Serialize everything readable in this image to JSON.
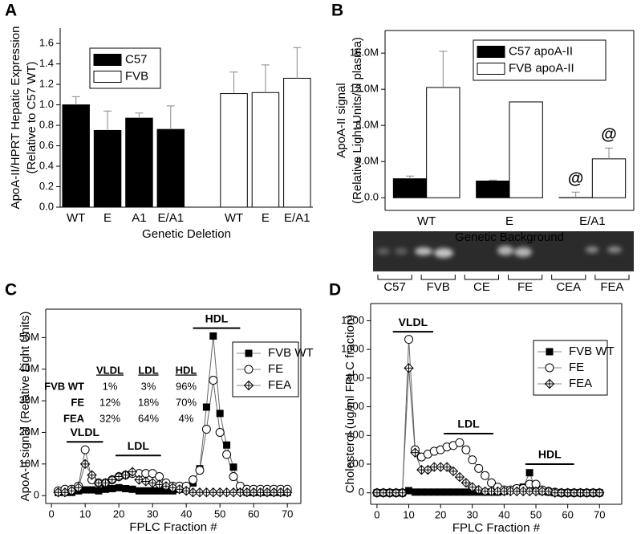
{
  "chart_data": [
    {
      "type": "bar",
      "panel": "A",
      "categories": [
        "WT",
        "E",
        "A1",
        "E/A1",
        null,
        "WT",
        "E",
        "E/A1"
      ],
      "series": [
        {
          "name": "C57",
          "color": "#000000",
          "values": [
            1.0,
            0.75,
            0.87,
            0.76,
            null,
            null,
            null,
            null
          ],
          "errors": [
            0.08,
            0.19,
            0.05,
            0.23,
            null,
            null,
            null,
            null
          ]
        },
        {
          "name": "FVB",
          "color": "#ffffff",
          "values": [
            null,
            null,
            null,
            null,
            null,
            1.11,
            1.12,
            1.26
          ],
          "errors": [
            null,
            null,
            null,
            null,
            null,
            0.21,
            0.27,
            0.3
          ]
        }
      ],
      "xlabel": "Genetic Deletion",
      "ylabel": [
        "ApoA-II/HPRT Hepatic Expression",
        "(Relative to C57 WT)"
      ],
      "ylim": [
        0,
        1.75
      ],
      "yticks": [
        {
          "value": 0,
          "label": "0.0"
        },
        0.2,
        0.4,
        0.6,
        0.8,
        {
          "value": 1,
          "label": "1.0"
        },
        1.2,
        1.4,
        1.6
      ],
      "frame": false
    },
    {
      "type": "bar",
      "panel": "B",
      "categories": [
        "WT",
        "E",
        "E/A1"
      ],
      "series": [
        {
          "name": "C57 apoA-II",
          "color": "#000000",
          "values": [
            2100000,
            1850000,
            20000
          ],
          "errors": [
            300000,
            100000,
            600000
          ]
        },
        {
          "name": "FVB apoA-II",
          "color": "#ffffff",
          "values": [
            12200000,
            10600000,
            4300000
          ],
          "errors": [
            4000000,
            null,
            1200000
          ]
        }
      ],
      "annotations": [
        "@",
        "@"
      ],
      "xlabel": "Genetic Background",
      "ylabel": [
        "ApoA-II signal",
        "(Relative Light Units/µl plasma)"
      ],
      "ylim": [
        -1400000,
        18500000
      ],
      "yticks": [
        {
          "value": 0,
          "label": "0.0"
        },
        {
          "value": 4000000,
          "label": "4.0M"
        },
        {
          "value": 8000000,
          "label": "8.0M"
        },
        {
          "value": 12000000,
          "label": "12.0M"
        },
        {
          "value": 16000000,
          "label": "16.0M"
        }
      ],
      "lanes": [
        "C57",
        "FVB",
        "CE",
        "FE",
        "CEA",
        "FEA"
      ],
      "frame": true
    },
    {
      "type": "line",
      "panel": "C",
      "x": [
        2,
        4,
        6,
        8,
        10,
        12,
        14,
        16,
        18,
        20,
        22,
        24,
        26,
        28,
        30,
        32,
        34,
        36,
        38,
        40,
        42,
        44,
        46,
        48,
        50,
        52,
        54,
        56,
        58,
        60,
        62,
        64,
        66,
        68,
        70
      ],
      "series": [
        {
          "name": "FVB WT",
          "color": "#000000",
          "marker": "square",
          "values": [
            1000000,
            1000000,
            1000000,
            1500000,
            1800000,
            1800000,
            1500000,
            2000000,
            2200000,
            2500000,
            2200000,
            2000000,
            1500000,
            1500000,
            1500000,
            1500000,
            1500000,
            1500000,
            2000000,
            2000000,
            4000000,
            8500000,
            28000000,
            50500000,
            26000000,
            16000000,
            9000000,
            2000000,
            1000000,
            1000000,
            1000000,
            1000000,
            1000000,
            1000000,
            1000000
          ]
        },
        {
          "name": "FE",
          "color": "#000000",
          "marker": "circle",
          "values": [
            1500000,
            2000000,
            2000000,
            3000000,
            14500000,
            5000000,
            4000000,
            4000000,
            5000000,
            6000000,
            6500000,
            7000000,
            7000000,
            7000000,
            7000000,
            6000000,
            4000000,
            3000000,
            3000000,
            3000000,
            5000000,
            8000000,
            21000000,
            36500000,
            20000000,
            13000000,
            6000000,
            3000000,
            2000000,
            2000000,
            2000000,
            2000000,
            2000000,
            2000000,
            2000000
          ]
        },
        {
          "name": "FEA",
          "color": "#000000",
          "marker": "diamond-cross",
          "values": [
            1000000,
            1000000,
            1500000,
            2500000,
            10000000,
            6500000,
            4000000,
            4000000,
            5000000,
            6000000,
            6500000,
            7500000,
            5000000,
            4500000,
            4000000,
            3500000,
            3000000,
            2500000,
            2000000,
            1500000,
            1000000,
            1000000,
            1000000,
            1000000,
            1000000,
            1000000,
            1000000,
            1000000,
            1000000,
            1000000,
            1000000,
            1000000,
            1000000,
            1000000,
            1000000
          ]
        }
      ],
      "regions": [
        {
          "label": "VLDL",
          "range": [
            4.5,
            15.3
          ],
          "at": 17000000
        },
        {
          "label": "LDL",
          "range": [
            19,
            32.5
          ],
          "at": 12700000
        },
        {
          "label": "HDL",
          "range": [
            42,
            56
          ],
          "at": 53000000
        }
      ],
      "table": {
        "header": [
          "VLDL",
          "LDL",
          "HDL"
        ],
        "rows": [
          [
            "FVB WT",
            "1%",
            "3%",
            "96%"
          ],
          [
            "FE",
            "12%",
            "18%",
            "70%"
          ],
          [
            "FEA",
            "32%",
            "64%",
            "4%"
          ]
        ]
      },
      "xlabel": "FPLC Fraction #",
      "ylabel": [
        "ApoA-II signal (Relative Light Units)"
      ],
      "xlim": [
        -1.7,
        74
      ],
      "xticks": [
        0,
        10,
        20,
        30,
        40,
        50,
        60,
        70
      ],
      "ylim": [
        -2500000,
        59000000
      ],
      "yticks": [
        0,
        {
          "value": 10000000,
          "label": "10M"
        },
        {
          "value": 20000000,
          "label": "20M"
        },
        {
          "value": 30000000,
          "label": "30M"
        },
        {
          "value": 40000000,
          "label": "40M"
        },
        {
          "value": 50000000,
          "label": "50M"
        }
      ],
      "frame": true
    },
    {
      "type": "line",
      "panel": "D",
      "x": [
        0,
        2,
        4,
        6,
        8,
        10,
        12,
        14,
        16,
        18,
        20,
        22,
        24,
        26,
        28,
        30,
        32,
        34,
        36,
        38,
        40,
        42,
        44,
        46,
        48,
        50,
        52,
        54,
        56,
        58,
        60,
        62,
        64,
        66,
        68,
        70
      ],
      "series": [
        {
          "name": "FVB WT",
          "color": "#000000",
          "marker": "square",
          "values": [
            0,
            0,
            0,
            0,
            0,
            15,
            5,
            5,
            5,
            5,
            5,
            5,
            5,
            5,
            5,
            5,
            5,
            5,
            5,
            5,
            10,
            20,
            30,
            40,
            140,
            20,
            10,
            5,
            0,
            0,
            0,
            0,
            0,
            0,
            0,
            0
          ]
        },
        {
          "name": "FE",
          "color": "#000000",
          "marker": "circle",
          "values": [
            0,
            0,
            0,
            0,
            0,
            1070,
            300,
            250,
            270,
            290,
            300,
            320,
            330,
            350,
            300,
            230,
            170,
            120,
            70,
            40,
            20,
            20,
            30,
            30,
            60,
            60,
            20,
            10,
            5,
            0,
            0,
            0,
            0,
            0,
            0,
            0
          ]
        },
        {
          "name": "FEA",
          "color": "#000000",
          "marker": "diamond-cross",
          "values": [
            0,
            0,
            0,
            0,
            0,
            870,
            280,
            160,
            160,
            180,
            180,
            180,
            150,
            110,
            70,
            40,
            20,
            10,
            10,
            10,
            10,
            10,
            10,
            10,
            10,
            10,
            10,
            10,
            0,
            0,
            0,
            0,
            0,
            0,
            0,
            0
          ]
        }
      ],
      "regions": [
        {
          "label": "VLDL",
          "range": [
            5,
            17.7
          ],
          "at": 1123
        },
        {
          "label": "LDL",
          "range": [
            21,
            36.6
          ],
          "at": 413
        },
        {
          "label": "HDL",
          "range": [
            46.7,
            62
          ],
          "at": 200
        }
      ],
      "xlabel": "FPLC Fraction #",
      "ylabel": [
        "Cholesterol (ug/ml FPLC fraction)"
      ],
      "xlim": [
        -2,
        77
      ],
      "xticks": [
        0,
        10,
        20,
        30,
        40,
        50,
        60,
        70
      ],
      "ylim": [
        -80,
        1320
      ],
      "yticks": [
        0,
        200,
        400,
        600,
        800,
        1000,
        1200
      ],
      "frame": true
    }
  ]
}
